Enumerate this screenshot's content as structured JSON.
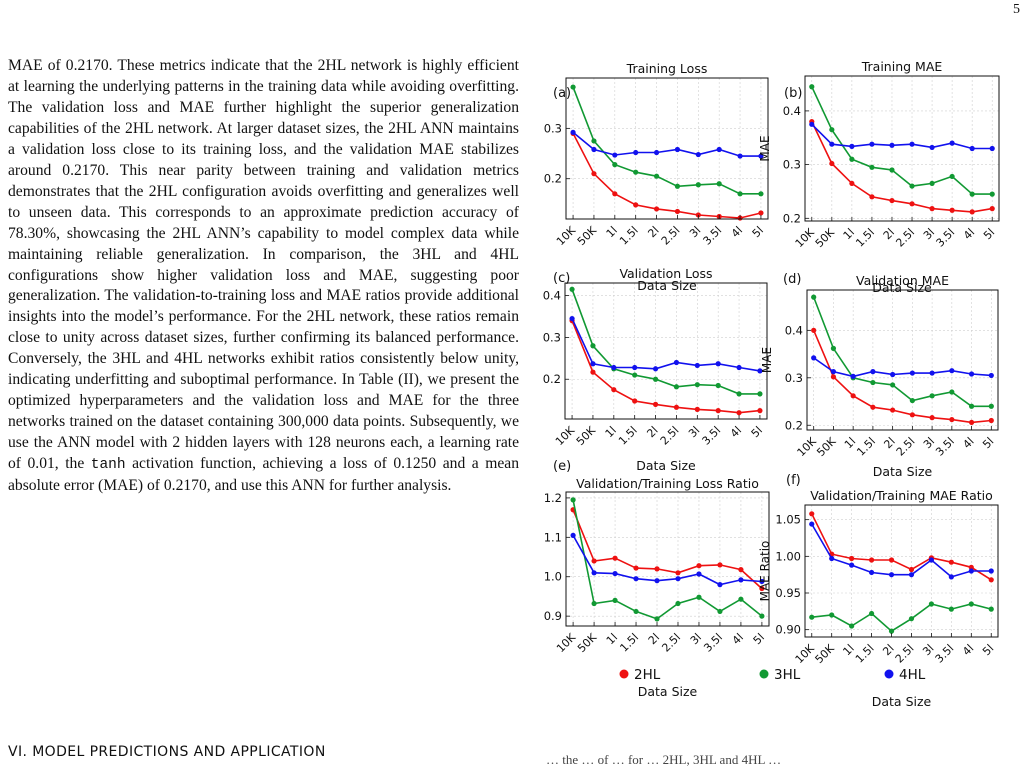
{
  "page_number": "5",
  "body_text": {
    "part1": "MAE of 0.2170. These metrics indicate that the 2HL network is highly efficient at learning the underlying patterns in the training data while avoiding overfitting. The validation loss and MAE further highlight the superior generalization capabilities of the 2HL network. At larger dataset sizes, the 2HL ANN maintains a validation loss close to its training loss, and the validation MAE stabilizes around 0.2170. This near parity between training and validation metrics demonstrates that the 2HL configuration avoids overfitting and generalizes well to unseen data. This corresponds to an approximate prediction accuracy of 78.30%, showcasing the 2HL ANN’s capability to model complex data while maintaining reliable generalization. In comparison, the 3HL and 4HL configurations show higher validation loss and MAE, suggesting poor generalization. The validation-to-training loss and MAE ratios provide additional insights into the model’s performance. For the 2HL network, these ratios remain close to unity across dataset sizes, further confirming its balanced performance. Conversely, the 3HL and 4HL networks exhibit ratios consistently below unity, indicating underfitting and suboptimal performance. In Table (II), we present the optimized hyperparameters and the validation loss and MAE for the three networks trained on the dataset containing 300,000 data points. Subsequently, we use the ANN model with 2 hidden layers with 128 neurons each, a learning rate of 0.01, the ",
    "code_word": "tanh",
    "part2": " activation function, achieving a loss of 0.1250 and a mean absolute error (MAE) of 0.2170, and use this ANN for further analysis."
  },
  "section_heading": "VI.   MODEL PREDICTIONS AND APPLICATION",
  "caption_fragment": "… the … of … for … 2HL, 3HL and 4HL …",
  "legend": [
    {
      "name": "2HL",
      "color": "#ee1111"
    },
    {
      "name": "3HL",
      "color": "#119933"
    },
    {
      "name": "4HL",
      "color": "#1111ee"
    }
  ],
  "chart_data": [
    {
      "panel": "(a)",
      "type": "line",
      "title": "Training Loss",
      "xlabel": "Data Size",
      "ylabel": "Loss",
      "x": [
        "10K",
        "50K",
        "1l",
        "1.5l",
        "2l",
        "2.5l",
        "3l",
        "3.5l",
        "4l",
        "5l"
      ],
      "ylim": [
        0.12,
        0.4
      ],
      "yticks": [
        "0.2",
        "0.3"
      ],
      "ytick_values": [
        0.2,
        0.3
      ],
      "series": [
        {
          "name": "2HL",
          "values": [
            0.29,
            0.21,
            0.17,
            0.148,
            0.14,
            0.135,
            0.128,
            0.125,
            0.122,
            0.132
          ]
        },
        {
          "name": "3HL",
          "values": [
            0.382,
            0.275,
            0.228,
            0.213,
            0.205,
            0.185,
            0.188,
            0.19,
            0.17,
            0.17
          ]
        },
        {
          "name": "4HL",
          "values": [
            0.292,
            0.258,
            0.247,
            0.252,
            0.252,
            0.258,
            0.248,
            0.258,
            0.245,
            0.245
          ]
        }
      ]
    },
    {
      "panel": "(b)",
      "type": "line",
      "title": "Training MAE",
      "xlabel": "Data Size",
      "ylabel": "MAE",
      "x": [
        "10K",
        "50K",
        "1l",
        "1.5l",
        "2l",
        "2.5l",
        "3l",
        "3.5l",
        "4l",
        "5l"
      ],
      "ylim": [
        0.195,
        0.465
      ],
      "yticks": [
        "0.2",
        "0.3",
        "0.4"
      ],
      "ytick_values": [
        0.2,
        0.3,
        0.4
      ],
      "series": [
        {
          "name": "2HL",
          "values": [
            0.38,
            0.302,
            0.265,
            0.24,
            0.233,
            0.227,
            0.218,
            0.215,
            0.212,
            0.218
          ]
        },
        {
          "name": "3HL",
          "values": [
            0.445,
            0.365,
            0.31,
            0.295,
            0.29,
            0.26,
            0.265,
            0.278,
            0.245,
            0.245
          ]
        },
        {
          "name": "4HL",
          "values": [
            0.375,
            0.338,
            0.334,
            0.338,
            0.336,
            0.338,
            0.332,
            0.34,
            0.33,
            0.33
          ]
        }
      ]
    },
    {
      "panel": "(c)",
      "type": "line",
      "title": "Validation Loss",
      "xlabel": "Data Size",
      "ylabel": "Loss",
      "x": [
        "10K",
        "50K",
        "1l",
        "1.5l",
        "2l",
        "2.5l",
        "3l",
        "3.5l",
        "4l",
        "5l"
      ],
      "ylim": [
        0.105,
        0.43
      ],
      "yticks": [
        "0.2",
        "0.3",
        "0.4"
      ],
      "ytick_values": [
        0.2,
        0.3,
        0.4
      ],
      "series": [
        {
          "name": "2HL",
          "values": [
            0.34,
            0.217,
            0.175,
            0.148,
            0.14,
            0.133,
            0.128,
            0.125,
            0.12,
            0.125
          ]
        },
        {
          "name": "3HL",
          "values": [
            0.415,
            0.28,
            0.225,
            0.21,
            0.2,
            0.182,
            0.187,
            0.185,
            0.165,
            0.165
          ]
        },
        {
          "name": "4HL",
          "values": [
            0.345,
            0.237,
            0.228,
            0.228,
            0.225,
            0.24,
            0.233,
            0.237,
            0.228,
            0.22
          ]
        }
      ]
    },
    {
      "panel": "(d)",
      "type": "line",
      "title": "Validation MAE",
      "xlabel": "Data Size",
      "ylabel": "MAE",
      "x": [
        "10K",
        "50K",
        "1l",
        "1.5l",
        "2l",
        "2.5l",
        "3l",
        "3.5l",
        "4l",
        "5l"
      ],
      "ylim": [
        0.19,
        0.485
      ],
      "yticks": [
        "0.2",
        "0.3",
        "0.4"
      ],
      "ytick_values": [
        0.2,
        0.3,
        0.4
      ],
      "series": [
        {
          "name": "2HL",
          "values": [
            0.4,
            0.302,
            0.262,
            0.238,
            0.232,
            0.222,
            0.216,
            0.212,
            0.206,
            0.21
          ]
        },
        {
          "name": "3HL",
          "values": [
            0.47,
            0.362,
            0.3,
            0.29,
            0.285,
            0.252,
            0.262,
            0.27,
            0.24,
            0.24
          ]
        },
        {
          "name": "4HL",
          "values": [
            0.342,
            0.313,
            0.303,
            0.313,
            0.307,
            0.31,
            0.31,
            0.315,
            0.308,
            0.305
          ]
        }
      ]
    },
    {
      "panel": "(e)",
      "type": "line",
      "title": "Validation/Training Loss Ratio",
      "xlabel": "Data Size",
      "ylabel": "Loss Ratio",
      "x": [
        "10K",
        "50K",
        "1l",
        "1.5l",
        "2l",
        "2.5l",
        "3l",
        "3.5l",
        "4l",
        "5l"
      ],
      "ylim": [
        0.875,
        1.215
      ],
      "yticks": [
        "0.9",
        "1.0",
        "1.1",
        "1.2"
      ],
      "ytick_values": [
        0.9,
        1.0,
        1.1,
        1.2
      ],
      "series": [
        {
          "name": "2HL",
          "values": [
            1.17,
            1.04,
            1.047,
            1.022,
            1.02,
            1.01,
            1.028,
            1.03,
            1.018,
            0.97
          ]
        },
        {
          "name": "3HL",
          "values": [
            1.195,
            0.932,
            0.94,
            0.912,
            0.893,
            0.932,
            0.948,
            0.912,
            0.943,
            0.9
          ]
        },
        {
          "name": "4HL",
          "values": [
            1.105,
            1.01,
            1.008,
            0.995,
            0.99,
            0.995,
            1.007,
            0.98,
            0.992,
            0.988
          ]
        }
      ]
    },
    {
      "panel": "(f)",
      "type": "line",
      "title": "Validation/Training MAE Ratio",
      "xlabel": "Data Size",
      "ylabel": "MAE Ratio",
      "x": [
        "10K",
        "50K",
        "1l",
        "1.5l",
        "2l",
        "2.5l",
        "3l",
        "3.5l",
        "4l",
        "5l"
      ],
      "ylim": [
        0.89,
        1.07
      ],
      "yticks": [
        "0.90",
        "0.95",
        "1.00",
        "1.05"
      ],
      "ytick_values": [
        0.9,
        0.95,
        1.0,
        1.05
      ],
      "series": [
        {
          "name": "2HL",
          "values": [
            1.058,
            1.003,
            0.997,
            0.995,
            0.995,
            0.982,
            0.998,
            0.992,
            0.985,
            0.968
          ]
        },
        {
          "name": "3HL",
          "values": [
            0.917,
            0.92,
            0.905,
            0.922,
            0.898,
            0.915,
            0.935,
            0.928,
            0.935,
            0.928
          ]
        },
        {
          "name": "4HL",
          "values": [
            1.044,
            0.997,
            0.988,
            0.978,
            0.975,
            0.975,
            0.995,
            0.972,
            0.98,
            0.98
          ]
        }
      ]
    }
  ]
}
